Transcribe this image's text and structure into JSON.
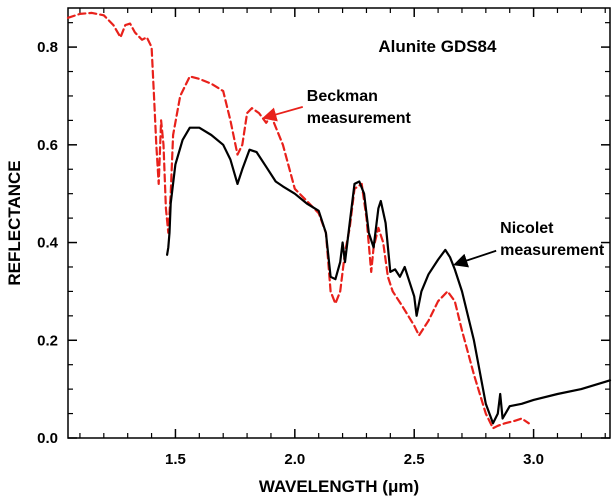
{
  "chart_data": {
    "type": "line",
    "title": "Alunite GDS84",
    "xlabel": "WAVELENGTH (μm)",
    "ylabel": "REFLECTANCE",
    "xlim": [
      1.05,
      3.32
    ],
    "ylim": [
      0.0,
      0.88
    ],
    "xticks": [
      1.5,
      2.0,
      2.5,
      3.0
    ],
    "xtick_labels": [
      "1.5",
      "2.0",
      "2.5",
      "3.0"
    ],
    "yticks": [
      0.0,
      0.2,
      0.4,
      0.6,
      0.8
    ],
    "ytick_labels": [
      "0.0",
      "0.2",
      "0.4",
      "0.6",
      "0.8"
    ],
    "grid": false,
    "series": [
      {
        "name": "Beckman measurement",
        "color": "#e8211b",
        "style": "dashed",
        "points": [
          [
            1.05,
            0.86
          ],
          [
            1.1,
            0.868
          ],
          [
            1.15,
            0.87
          ],
          [
            1.2,
            0.865
          ],
          [
            1.24,
            0.845
          ],
          [
            1.27,
            0.82
          ],
          [
            1.29,
            0.845
          ],
          [
            1.31,
            0.848
          ],
          [
            1.33,
            0.83
          ],
          [
            1.36,
            0.815
          ],
          [
            1.38,
            0.82
          ],
          [
            1.4,
            0.8
          ],
          [
            1.41,
            0.7
          ],
          [
            1.42,
            0.6
          ],
          [
            1.43,
            0.52
          ],
          [
            1.44,
            0.65
          ],
          [
            1.45,
            0.6
          ],
          [
            1.46,
            0.47
          ],
          [
            1.47,
            0.42
          ],
          [
            1.48,
            0.5
          ],
          [
            1.49,
            0.62
          ],
          [
            1.52,
            0.7
          ],
          [
            1.56,
            0.74
          ],
          [
            1.6,
            0.735
          ],
          [
            1.65,
            0.725
          ],
          [
            1.7,
            0.71
          ],
          [
            1.73,
            0.65
          ],
          [
            1.76,
            0.58
          ],
          [
            1.78,
            0.6
          ],
          [
            1.8,
            0.665
          ],
          [
            1.82,
            0.675
          ],
          [
            1.85,
            0.665
          ],
          [
            1.88,
            0.645
          ],
          [
            1.9,
            0.66
          ],
          [
            1.95,
            0.6
          ],
          [
            2.0,
            0.51
          ],
          [
            2.05,
            0.485
          ],
          [
            2.1,
            0.46
          ],
          [
            2.13,
            0.42
          ],
          [
            2.15,
            0.3
          ],
          [
            2.17,
            0.275
          ],
          [
            2.19,
            0.3
          ],
          [
            2.21,
            0.38
          ],
          [
            2.23,
            0.43
          ],
          [
            2.25,
            0.51
          ],
          [
            2.28,
            0.52
          ],
          [
            2.3,
            0.45
          ],
          [
            2.32,
            0.34
          ],
          [
            2.33,
            0.39
          ],
          [
            2.35,
            0.43
          ],
          [
            2.37,
            0.4
          ],
          [
            2.39,
            0.33
          ],
          [
            2.41,
            0.3
          ],
          [
            2.45,
            0.27
          ],
          [
            2.5,
            0.23
          ],
          [
            2.52,
            0.21
          ],
          [
            2.56,
            0.24
          ],
          [
            2.6,
            0.28
          ],
          [
            2.64,
            0.3
          ],
          [
            2.67,
            0.28
          ],
          [
            2.7,
            0.22
          ],
          [
            2.75,
            0.13
          ],
          [
            2.8,
            0.05
          ],
          [
            2.83,
            0.02
          ],
          [
            2.85,
            0.025
          ],
          [
            2.88,
            0.03
          ],
          [
            2.92,
            0.035
          ],
          [
            2.95,
            0.04
          ],
          [
            2.98,
            0.03
          ]
        ]
      },
      {
        "name": "Nicolet measurement",
        "color": "#000000",
        "style": "solid",
        "points": [
          [
            1.465,
            0.375
          ],
          [
            1.47,
            0.39
          ],
          [
            1.475,
            0.42
          ],
          [
            1.48,
            0.48
          ],
          [
            1.5,
            0.56
          ],
          [
            1.53,
            0.61
          ],
          [
            1.56,
            0.635
          ],
          [
            1.6,
            0.635
          ],
          [
            1.65,
            0.62
          ],
          [
            1.7,
            0.6
          ],
          [
            1.73,
            0.57
          ],
          [
            1.76,
            0.52
          ],
          [
            1.78,
            0.55
          ],
          [
            1.81,
            0.59
          ],
          [
            1.84,
            0.585
          ],
          [
            1.88,
            0.555
          ],
          [
            1.92,
            0.525
          ],
          [
            1.95,
            0.515
          ],
          [
            2.0,
            0.5
          ],
          [
            2.05,
            0.48
          ],
          [
            2.1,
            0.465
          ],
          [
            2.13,
            0.42
          ],
          [
            2.15,
            0.33
          ],
          [
            2.17,
            0.325
          ],
          [
            2.19,
            0.36
          ],
          [
            2.2,
            0.4
          ],
          [
            2.21,
            0.36
          ],
          [
            2.23,
            0.44
          ],
          [
            2.25,
            0.52
          ],
          [
            2.27,
            0.525
          ],
          [
            2.29,
            0.5
          ],
          [
            2.31,
            0.42
          ],
          [
            2.33,
            0.39
          ],
          [
            2.35,
            0.47
          ],
          [
            2.36,
            0.485
          ],
          [
            2.38,
            0.44
          ],
          [
            2.4,
            0.34
          ],
          [
            2.42,
            0.345
          ],
          [
            2.44,
            0.33
          ],
          [
            2.46,
            0.35
          ],
          [
            2.48,
            0.32
          ],
          [
            2.5,
            0.29
          ],
          [
            2.51,
            0.25
          ],
          [
            2.53,
            0.3
          ],
          [
            2.56,
            0.335
          ],
          [
            2.6,
            0.365
          ],
          [
            2.63,
            0.385
          ],
          [
            2.65,
            0.37
          ],
          [
            2.67,
            0.345
          ],
          [
            2.7,
            0.3
          ],
          [
            2.75,
            0.2
          ],
          [
            2.8,
            0.07
          ],
          [
            2.83,
            0.03
          ],
          [
            2.85,
            0.05
          ],
          [
            2.86,
            0.09
          ],
          [
            2.87,
            0.04
          ],
          [
            2.9,
            0.065
          ],
          [
            2.95,
            0.07
          ],
          [
            3.0,
            0.078
          ],
          [
            3.1,
            0.09
          ],
          [
            3.2,
            0.1
          ],
          [
            3.3,
            0.115
          ],
          [
            3.32,
            0.118
          ]
        ]
      }
    ],
    "annotations": [
      {
        "id": "beckman",
        "lines": [
          "Beckman",
          "measurement"
        ],
        "x": 2.05,
        "y": 0.69,
        "arrow_to": [
          1.87,
          0.655
        ],
        "color": "#e8211b"
      },
      {
        "id": "nicolet",
        "lines": [
          "Nicolet",
          "measurement"
        ],
        "x": 2.86,
        "y": 0.42,
        "arrow_to": [
          2.67,
          0.355
        ],
        "color": "#000000"
      }
    ]
  }
}
